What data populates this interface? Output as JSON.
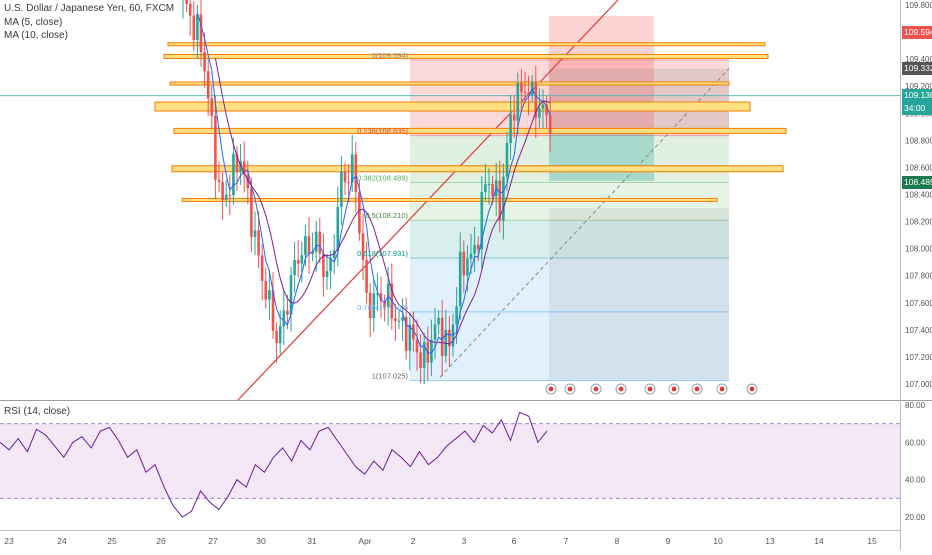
{
  "header": {
    "symbol_line": "U.S. Dollar / Japanese Yen, 60, FXCM",
    "ma5_label": "MA (5, close)",
    "ma10_label": "MA (10, close)",
    "rsi_label": "RSI (14, close)"
  },
  "price_tags": [
    {
      "label": "109.594",
      "value": 109.594,
      "color": "#ef5350"
    },
    {
      "label": "109.332",
      "value": 109.332,
      "color": "#555555"
    },
    {
      "label": "109.130",
      "value": 109.13,
      "color": "#26a69a"
    },
    {
      "label": "34:00",
      "value": 109.0,
      "color": "#26a69a"
    },
    {
      "label": "108.489",
      "value": 108.489,
      "color": "#1b7a4f"
    }
  ],
  "fib_labels": [
    {
      "label": "0(109.394)",
      "value": 109.394,
      "color": "#888888"
    },
    {
      "label": "0.236(108.835)",
      "value": 108.835,
      "color": "#e53935"
    },
    {
      "label": "0.382(108.489)",
      "value": 108.489,
      "color": "#4caf50"
    },
    {
      "label": "0.5(108.210)",
      "value": 108.21,
      "color": "#388e3c"
    },
    {
      "label": "0.618(107.931)",
      "value": 107.931,
      "color": "#009688"
    },
    {
      "label": "0.786(107.533)",
      "value": 107.533,
      "color": "#64b5f6"
    },
    {
      "label": "1(107.025)",
      "value": 107.025,
      "color": "#666666"
    }
  ],
  "chart_data": [
    {
      "type": "candlestick",
      "title": "U.S. Dollar / Japanese Yen, 60, FXCM",
      "ylim": [
        106.9,
        109.85
      ],
      "y_ticks": [
        "107.000",
        "107.200",
        "107.400",
        "107.600",
        "107.800",
        "108.000",
        "108.200",
        "108.400",
        "108.600",
        "108.800",
        "109.000",
        "109.200",
        "109.400",
        "109.600",
        "109.800"
      ],
      "x_ticks": [
        "23",
        "24",
        "25",
        "26",
        "27",
        "30",
        "31",
        "Apr",
        "2",
        "3",
        "6",
        "7",
        "8",
        "9",
        "10",
        "13",
        "14",
        "15"
      ],
      "series": [
        {
          "name": "MA (5, close)"
        },
        {
          "name": "MA (10, close)"
        }
      ],
      "path": [
        [
          0,
          109.85
        ],
        [
          1.2,
          109.5
        ],
        [
          2.4,
          108.3
        ],
        [
          3.6,
          108.7
        ],
        [
          4.8,
          107.9
        ],
        [
          6,
          107.3
        ],
        [
          7.2,
          107.95
        ],
        [
          8.4,
          108.05
        ],
        [
          9.2,
          107.75
        ],
        [
          10,
          108.5
        ],
        [
          10.8,
          108.6
        ],
        [
          11.6,
          107.6
        ],
        [
          12.8,
          107.65
        ],
        [
          13.6,
          107.45
        ],
        [
          14.4,
          107.35
        ],
        [
          15.2,
          107.15
        ],
        [
          16,
          107.45
        ],
        [
          16.8,
          107.25
        ],
        [
          17.6,
          107.9
        ],
        [
          18.4,
          107.95
        ],
        [
          19.2,
          108.55
        ],
        [
          20,
          108.3
        ],
        [
          20.8,
          109.05
        ],
        [
          21.6,
          109.2
        ],
        [
          22.4,
          109.05
        ],
        [
          23.2,
          108.95
        ]
      ],
      "fib_levels": [
        {
          "ratio": 0,
          "value": 109.394
        },
        {
          "ratio": 0.236,
          "value": 108.835
        },
        {
          "ratio": 0.382,
          "value": 108.489
        },
        {
          "ratio": 0.5,
          "value": 108.21
        },
        {
          "ratio": 0.618,
          "value": 107.931
        },
        {
          "ratio": 0.786,
          "value": 107.533
        },
        {
          "ratio": 1,
          "value": 107.025
        }
      ],
      "horizontal_lines": [
        109.51,
        109.42,
        109.22,
        109.05,
        108.87,
        108.59,
        108.36
      ],
      "position_tool": {
        "entry": 108.88,
        "stop": 109.72,
        "target": 108.5
      }
    },
    {
      "type": "line",
      "title": "RSI (14, close)",
      "ylim": [
        15,
        85
      ],
      "y_ticks": [
        "20.00",
        "40.00",
        "60.00",
        "80.00"
      ],
      "guides": [
        70,
        30
      ],
      "values": [
        60,
        56,
        62,
        55,
        67,
        64,
        58,
        52,
        60,
        63,
        57,
        66,
        68,
        61,
        52,
        56,
        44,
        48,
        36,
        26,
        20,
        23,
        34,
        28,
        24,
        31,
        40,
        36,
        48,
        44,
        52,
        57,
        50,
        61,
        56,
        66,
        68,
        61,
        54,
        47,
        43,
        50,
        45,
        56,
        52,
        47,
        55,
        48,
        52,
        58,
        62,
        66,
        60,
        69,
        65,
        72,
        61,
        76,
        74,
        60,
        66
      ]
    }
  ]
}
